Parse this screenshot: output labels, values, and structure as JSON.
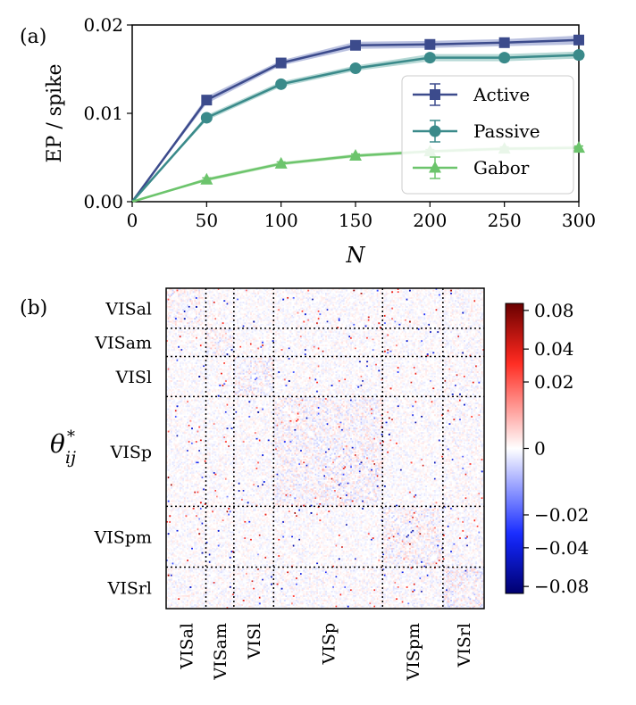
{
  "figure": {
    "panel_a_label": "(a)",
    "panel_b_label": "(b)"
  },
  "chart_data": [
    {
      "type": "line",
      "panel": "(a)",
      "title": "",
      "xlabel": "N",
      "ylabel": "EP / spike",
      "x": [
        0,
        50,
        100,
        150,
        200,
        250,
        300
      ],
      "xlim": [
        0,
        300
      ],
      "ylim": [
        0.0,
        0.02
      ],
      "x_ticks": [
        "0",
        "50",
        "100",
        "150",
        "200",
        "250",
        "300"
      ],
      "y_ticks": [
        "0.00",
        "0.01",
        "0.02"
      ],
      "legend_position": "lower-right",
      "grid": false,
      "series": [
        {
          "name": "Active",
          "marker": "square",
          "color": "#3c4b8c",
          "band": "#a9b2d8",
          "values": [
            0.0,
            0.0115,
            0.0157,
            0.0177,
            0.0178,
            0.018,
            0.0183
          ],
          "errors": [
            0.0,
            0.0004,
            0.0003,
            0.0004,
            0.0004,
            0.0004,
            0.0005
          ]
        },
        {
          "name": "Passive",
          "marker": "circle",
          "color": "#3a8a8a",
          "band": "#a5d0cc",
          "values": [
            0.0,
            0.0095,
            0.0133,
            0.0151,
            0.0163,
            0.0163,
            0.0166
          ],
          "errors": [
            0.0,
            0.0003,
            0.0003,
            0.0003,
            0.0004,
            0.0004,
            0.0004
          ]
        },
        {
          "name": "Gabor",
          "marker": "triangle",
          "color": "#6cc46c",
          "band": "#c6e9c0",
          "values": [
            0.0,
            0.0025,
            0.0043,
            0.0052,
            0.0057,
            0.006,
            0.0061
          ],
          "errors": [
            0.0,
            0.0002,
            0.0002,
            0.0002,
            0.0002,
            0.0002,
            0.0002
          ]
        }
      ]
    },
    {
      "type": "heatmap",
      "panel": "(b)",
      "title": "",
      "row_label": "θ*ij",
      "areas": [
        "VISal",
        "VISam",
        "VISl",
        "VISp",
        "VISpm",
        "VISrl"
      ],
      "area_neurons": [
        27,
        19,
        27,
        74,
        41,
        28
      ],
      "colormap": "seismic",
      "colorbar_range": [
        -0.09,
        0.09
      ],
      "colorbar_ticks": [
        "0.08",
        "0.04",
        "0.02",
        "0",
        "−0.02",
        "−0.04",
        "−0.08"
      ],
      "colorbar_tick_values": [
        0.08,
        0.04,
        0.02,
        0,
        -0.02,
        -0.04,
        -0.08
      ],
      "colorbar_scale": "symlog"
    }
  ]
}
